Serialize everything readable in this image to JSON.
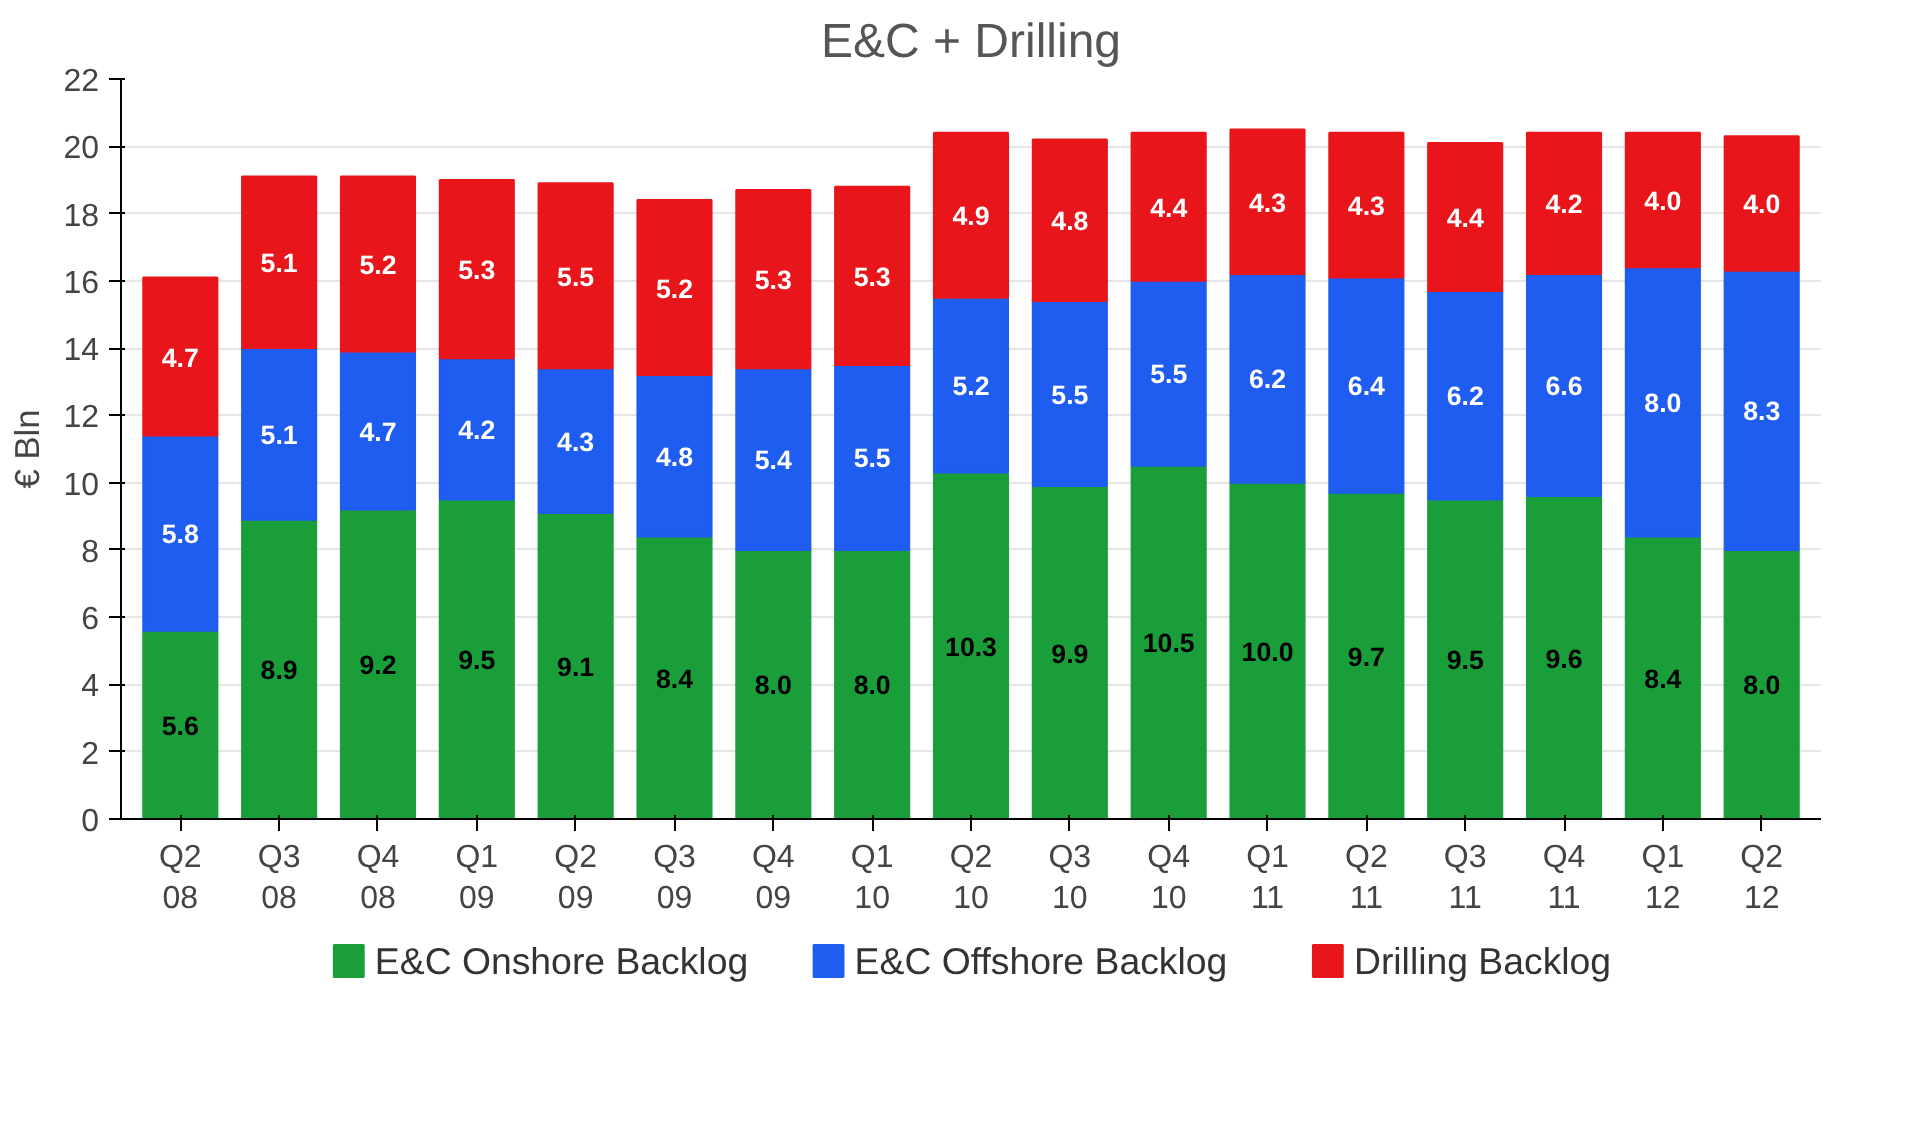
{
  "chart_data": {
    "type": "bar",
    "title": "E&C + Drilling",
    "ylabel": "€ Bln",
    "categories": [
      "Q2\n08",
      "Q3\n08",
      "Q4\n08",
      "Q1\n09",
      "Q2\n09",
      "Q3\n09",
      "Q4\n09",
      "Q1\n10",
      "Q2\n10",
      "Q3\n10",
      "Q4\n10",
      "Q1\n11",
      "Q2\n11",
      "Q3\n11",
      "Q4\n11",
      "Q1\n12",
      "Q2\n12"
    ],
    "series": [
      {
        "name": "E&C Onshore Backlog",
        "color": "#1a9e3a",
        "values": [
          5.6,
          8.9,
          9.2,
          9.5,
          9.1,
          8.4,
          8.0,
          8.0,
          10.3,
          9.9,
          10.5,
          10.0,
          9.7,
          9.5,
          9.6,
          8.4,
          8.0
        ],
        "value_labels": [
          "5.6",
          "8.9",
          "9.2",
          "9.5",
          "9.1",
          "8.4",
          "8.0",
          "8.0",
          "10.3",
          "9.9",
          "10.5",
          "10.0",
          "9.7",
          "9.5",
          "9.6",
          "8.4",
          "8.0"
        ]
      },
      {
        "name": "E&C Offshore Backlog",
        "color": "#1f5cf0",
        "values": [
          5.8,
          5.1,
          4.7,
          4.2,
          4.3,
          4.8,
          5.4,
          5.5,
          5.2,
          5.5,
          5.5,
          6.2,
          6.4,
          6.2,
          6.6,
          8.0,
          8.3
        ],
        "value_labels": [
          "5.8",
          "5.1",
          "4.7",
          "4.2",
          "4.3",
          "4.8",
          "5.4",
          "5.5",
          "5.2",
          "5.5",
          "5.5",
          "6.2",
          "6.4",
          "6.2",
          "6.6",
          "8.0",
          "8.3"
        ]
      },
      {
        "name": "Drilling Backlog",
        "color": "#e8161b",
        "values": [
          4.7,
          5.1,
          5.2,
          5.3,
          5.5,
          5.2,
          5.3,
          5.3,
          4.9,
          4.8,
          4.4,
          4.3,
          4.3,
          4.4,
          4.2,
          4.0,
          4.0
        ],
        "value_labels": [
          "4.7",
          "5.1",
          "5.2",
          "5.3",
          "5.5",
          "5.2",
          "5.3",
          "5.3",
          "4.9",
          "4.8",
          "4.4",
          "4.3",
          "4.3",
          "4.4",
          "4.2",
          "4.0",
          "4.0"
        ]
      }
    ],
    "stacked": true,
    "ylim": [
      0,
      22
    ],
    "yticks": [
      0,
      2,
      4,
      6,
      8,
      10,
      12,
      14,
      16,
      18,
      20,
      22
    ],
    "grid": "y",
    "legend": "bottom",
    "data_labels": true
  }
}
